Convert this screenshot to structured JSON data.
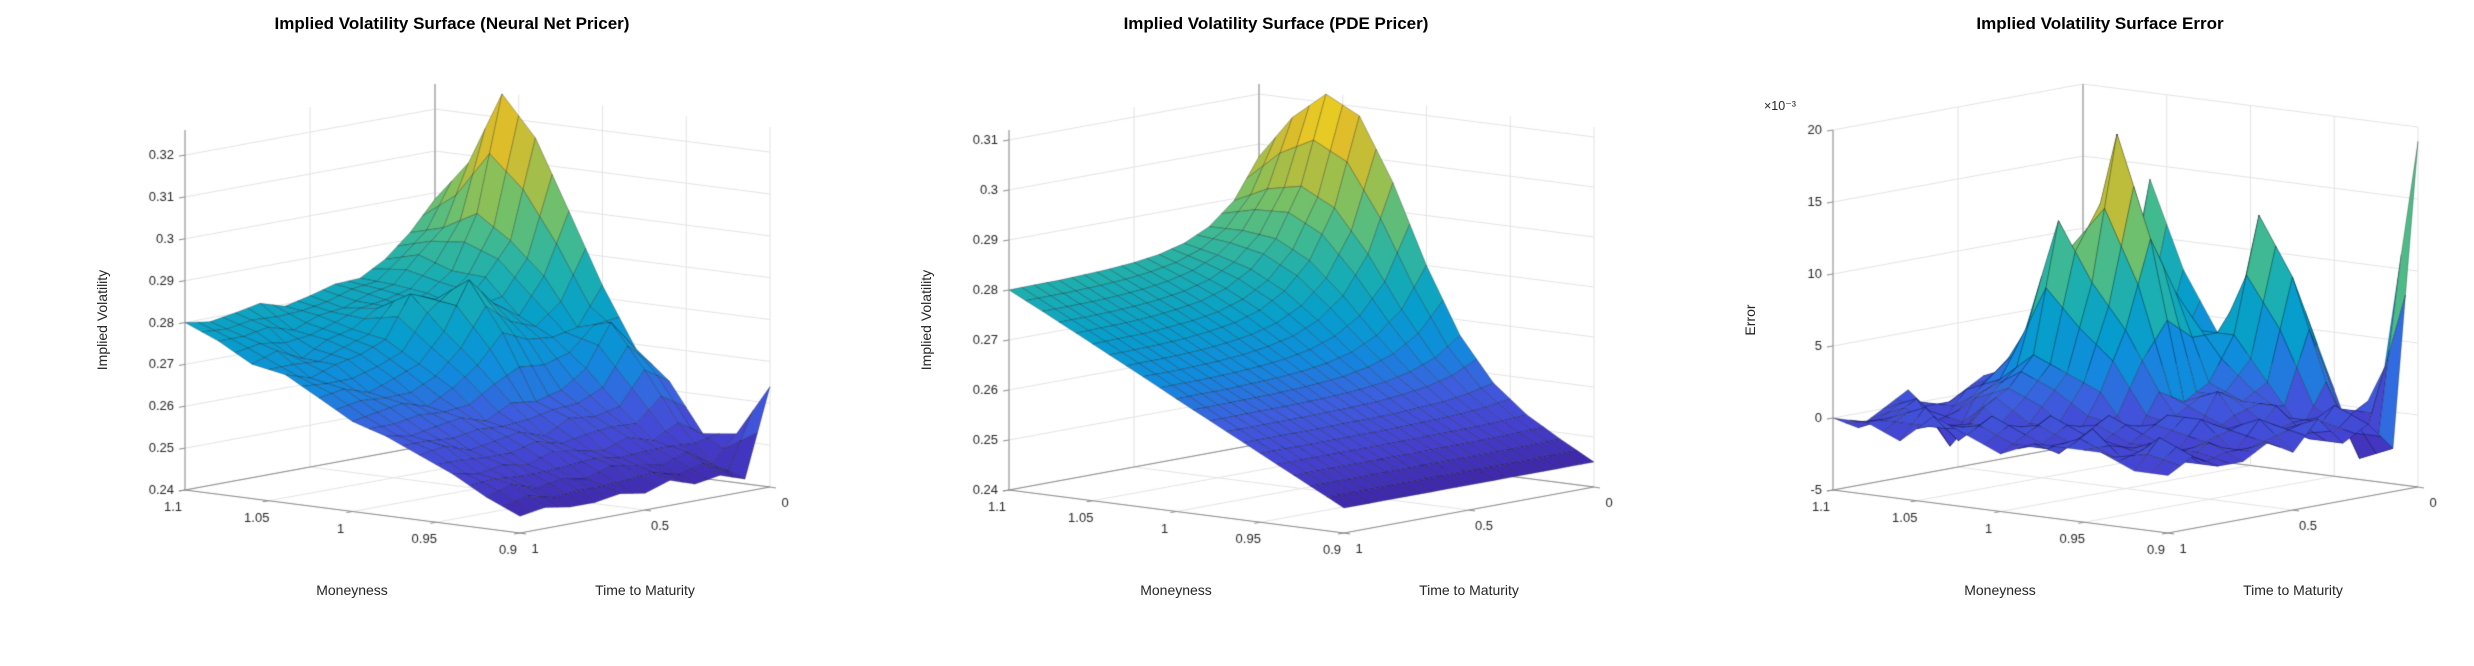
{
  "style": {
    "background": "#ffffff",
    "title_color": "#000000",
    "tick_label_color": "#262626",
    "axis_color": "#8c8c8c",
    "grid_color": "#e3e3e3",
    "mesh_line_color": "rgba(0,0,0,0.5)",
    "parula": [
      "#3e26a8",
      "#4642d1",
      "#3e5ee0",
      "#118cde",
      "#079ecd",
      "#18adb5",
      "#41ba92",
      "#79c166",
      "#b5be3f",
      "#e3bd29",
      "#f9fb15"
    ]
  },
  "chart_data": [
    {
      "type": "surface",
      "title": "Implied Volatility Surface (Neural Net Pricer)",
      "xlabel": "Moneyness",
      "ylabel": "Time to Maturity",
      "zlabel": "Implied Volatility",
      "z_multiplier_label": "",
      "colormap": "parula",
      "x_moneyness": [
        0.9,
        0.92,
        0.94,
        0.96,
        0.98,
        1.0,
        1.02,
        1.04,
        1.06,
        1.08,
        1.1
      ],
      "y_maturity": [
        0,
        0.1,
        0.2,
        0.3,
        0.4,
        0.5,
        0.6,
        0.7,
        0.8,
        0.9,
        1.0
      ],
      "zlim": [
        0.24,
        0.326
      ],
      "zticks": [
        0.24,
        0.25,
        0.26,
        0.27,
        0.28,
        0.29,
        0.3,
        0.31,
        0.32
      ],
      "ztick_labels": [
        "0.24",
        "0.25",
        "0.26",
        "0.27",
        "0.28",
        "0.29",
        "0.3",
        "0.31",
        "0.32"
      ],
      "xticks": [
        1.1,
        1.05,
        1.0,
        0.95,
        0.9
      ],
      "xtick_labels": [
        "1.1",
        "1.05",
        "1",
        "0.95",
        "0.9"
      ],
      "yticks": [
        1.0,
        0.5,
        0
      ],
      "ytick_labels": [
        "1",
        "0.5",
        "0"
      ],
      "z": [
        [
          0.264,
          0.243,
          0.245,
          0.244,
          0.246,
          0.244,
          0.245,
          0.244,
          0.244,
          0.245,
          0.244
        ],
        [
          0.2517,
          0.2456,
          0.2495,
          0.2475,
          0.2485,
          0.2495,
          0.2475,
          0.2485,
          0.2475,
          0.2495,
          0.2475
        ],
        [
          0.2507,
          0.2544,
          0.2512,
          0.2531,
          0.2511,
          0.252,
          0.253,
          0.251,
          0.252,
          0.251,
          0.252
        ],
        [
          0.2622,
          0.266,
          0.2583,
          0.257,
          0.2577,
          0.2546,
          0.2566,
          0.2555,
          0.2545,
          0.2565,
          0.2555
        ],
        [
          0.2689,
          0.2763,
          0.2664,
          0.2623,
          0.2607,
          0.2614,
          0.2582,
          0.2601,
          0.2591,
          0.258,
          0.259
        ],
        [
          0.283,
          0.2741,
          0.2728,
          0.2734,
          0.2761,
          0.2694,
          0.265,
          0.2618,
          0.2636,
          0.2626,
          0.2615
        ],
        [
          0.2997,
          0.2853,
          0.2769,
          0.2809,
          0.2877,
          0.2765,
          0.2698,
          0.2674,
          0.2652,
          0.2671,
          0.2661
        ],
        [
          0.3162,
          0.2927,
          0.2851,
          0.2789,
          0.282,
          0.2844,
          0.2746,
          0.2721,
          0.2708,
          0.2687,
          0.2706
        ],
        [
          0.3257,
          0.2982,
          0.2856,
          0.2814,
          0.2795,
          0.2799,
          0.2761,
          0.2746,
          0.2713,
          0.2742,
          0.2721
        ],
        [
          0.3082,
          0.2938,
          0.2884,
          0.2824,
          0.2812,
          0.279,
          0.2783,
          0.2759,
          0.2777,
          0.2766,
          0.2766
        ],
        [
          0.2985,
          0.2916,
          0.2863,
          0.2829,
          0.2826,
          0.2809,
          0.2795,
          0.2813,
          0.2801,
          0.2791,
          0.28
        ]
      ]
    },
    {
      "type": "surface",
      "title": "Implied Volatility Surface (PDE Pricer)",
      "xlabel": "Moneyness",
      "ylabel": "Time to Maturity",
      "zlabel": "Implied Volatility",
      "z_multiplier_label": "",
      "colormap": "parula",
      "x_moneyness": [
        0.9,
        0.92,
        0.94,
        0.96,
        0.98,
        1.0,
        1.02,
        1.04,
        1.06,
        1.08,
        1.1
      ],
      "y_maturity": [
        0,
        0.1,
        0.2,
        0.3,
        0.4,
        0.5,
        0.6,
        0.7,
        0.8,
        0.9,
        1.0
      ],
      "zlim": [
        0.24,
        0.312
      ],
      "zticks": [
        0.24,
        0.25,
        0.26,
        0.27,
        0.28,
        0.29,
        0.3,
        0.31
      ],
      "ztick_labels": [
        "0.24",
        "0.25",
        "0.26",
        "0.27",
        "0.28",
        "0.29",
        "0.3",
        "0.31"
      ],
      "xticks": [
        1.1,
        1.05,
        1.0,
        0.95,
        0.9
      ],
      "xtick_labels": [
        "1.1",
        "1.05",
        "1",
        "0.95",
        "0.9"
      ],
      "yticks": [
        1.0,
        0.5,
        0
      ],
      "ytick_labels": [
        "1",
        "0.5",
        "0"
      ],
      "z": [
        [
          0.245,
          0.245,
          0.245,
          0.245,
          0.245,
          0.245,
          0.245,
          0.245,
          0.245,
          0.245,
          0.245
        ],
        [
          0.2487,
          0.2486,
          0.2485,
          0.2485,
          0.2485,
          0.2485,
          0.2485,
          0.2485,
          0.2485,
          0.2485,
          0.2485
        ],
        [
          0.2527,
          0.2524,
          0.2522,
          0.2521,
          0.2521,
          0.252,
          0.252,
          0.252,
          0.252,
          0.252,
          0.252
        ],
        [
          0.2582,
          0.257,
          0.2563,
          0.256,
          0.2557,
          0.2556,
          0.2556,
          0.2555,
          0.2555,
          0.2555,
          0.2555
        ],
        [
          0.2669,
          0.2633,
          0.2614,
          0.2603,
          0.2597,
          0.2594,
          0.2592,
          0.2591,
          0.2591,
          0.259,
          0.259
        ],
        [
          0.28,
          0.2721,
          0.2678,
          0.2654,
          0.2641,
          0.2634,
          0.263,
          0.2628,
          0.2626,
          0.2626,
          0.2625
        ],
        [
          0.2957,
          0.2823,
          0.2749,
          0.2709,
          0.2687,
          0.2675,
          0.2668,
          0.2664,
          0.2662,
          0.2661,
          0.2661
        ],
        [
          0.3082,
          0.2907,
          0.2811,
          0.2759,
          0.273,
          0.2714,
          0.2706,
          0.2701,
          0.2698,
          0.2697,
          0.2696
        ],
        [
          0.3117,
          0.2942,
          0.2846,
          0.2794,
          0.2765,
          0.2749,
          0.2741,
          0.2736,
          0.2733,
          0.2732,
          0.2731
        ],
        [
          0.3062,
          0.2928,
          0.2854,
          0.2814,
          0.2792,
          0.278,
          0.2773,
          0.2769,
          0.2767,
          0.2766,
          0.2766
        ],
        [
          0.2975,
          0.2896,
          0.2853,
          0.2829,
          0.2816,
          0.2809,
          0.2805,
          0.2803,
          0.2801,
          0.2801,
          0.28
        ]
      ]
    },
    {
      "type": "surface",
      "title": "Implied Volatility Surface Error",
      "xlabel": "Moneyness",
      "ylabel": "Time to Maturity",
      "zlabel": "Error",
      "z_multiplier_label": "×10⁻³",
      "z_values_unit": "1e-3",
      "colormap": "parula",
      "x_moneyness": [
        0.9,
        0.92,
        0.94,
        0.96,
        0.98,
        1.0,
        1.02,
        1.04,
        1.06,
        1.08,
        1.1
      ],
      "y_maturity": [
        0,
        0.1,
        0.2,
        0.3,
        0.4,
        0.5,
        0.6,
        0.7,
        0.8,
        0.9,
        1.0
      ],
      "zlim": [
        -5,
        20
      ],
      "zticks": [
        -5,
        0,
        5,
        10,
        15,
        20
      ],
      "ztick_labels": [
        "-5",
        "0",
        "5",
        "10",
        "15",
        "20"
      ],
      "xticks": [
        1.1,
        1.05,
        1.0,
        0.95,
        0.9
      ],
      "xtick_labels": [
        "1.1",
        "1.05",
        "1",
        "0.95",
        "0.9"
      ],
      "yticks": [
        1.0,
        0.5,
        0
      ],
      "ytick_labels": [
        "1",
        "0.5",
        "0"
      ],
      "z": [
        [
          19,
          -2,
          0,
          -1,
          1,
          -1,
          0,
          -1,
          -1,
          0,
          -1
        ],
        [
          3,
          -3,
          1,
          -1,
          0,
          1,
          -1,
          0,
          -1,
          1,
          -1
        ],
        [
          -2,
          2,
          -1,
          1,
          -1,
          0,
          1,
          -1,
          0,
          -1,
          0
        ],
        [
          4,
          9,
          2,
          1,
          2,
          -1,
          1,
          0,
          -1,
          1,
          0
        ],
        [
          2,
          13,
          5,
          2,
          1,
          2,
          -1,
          1,
          0,
          -1,
          0
        ],
        [
          3,
          2,
          5,
          8,
          12,
          6,
          2,
          -1,
          1,
          0,
          -1
        ],
        [
          4,
          3,
          2,
          10,
          19,
          9,
          3,
          1,
          -1,
          1,
          0
        ],
        [
          8,
          2,
          4,
          3,
          9,
          13,
          4,
          2,
          1,
          -1,
          1
        ],
        [
          14,
          4,
          1,
          2,
          3,
          5,
          2,
          1,
          -2,
          1,
          -1
        ],
        [
          2,
          1,
          3,
          1,
          2,
          1,
          1,
          -1,
          1,
          0,
          0
        ],
        [
          1,
          2,
          1,
          0,
          1,
          0,
          -1,
          1,
          0,
          -1,
          0
        ]
      ]
    }
  ]
}
